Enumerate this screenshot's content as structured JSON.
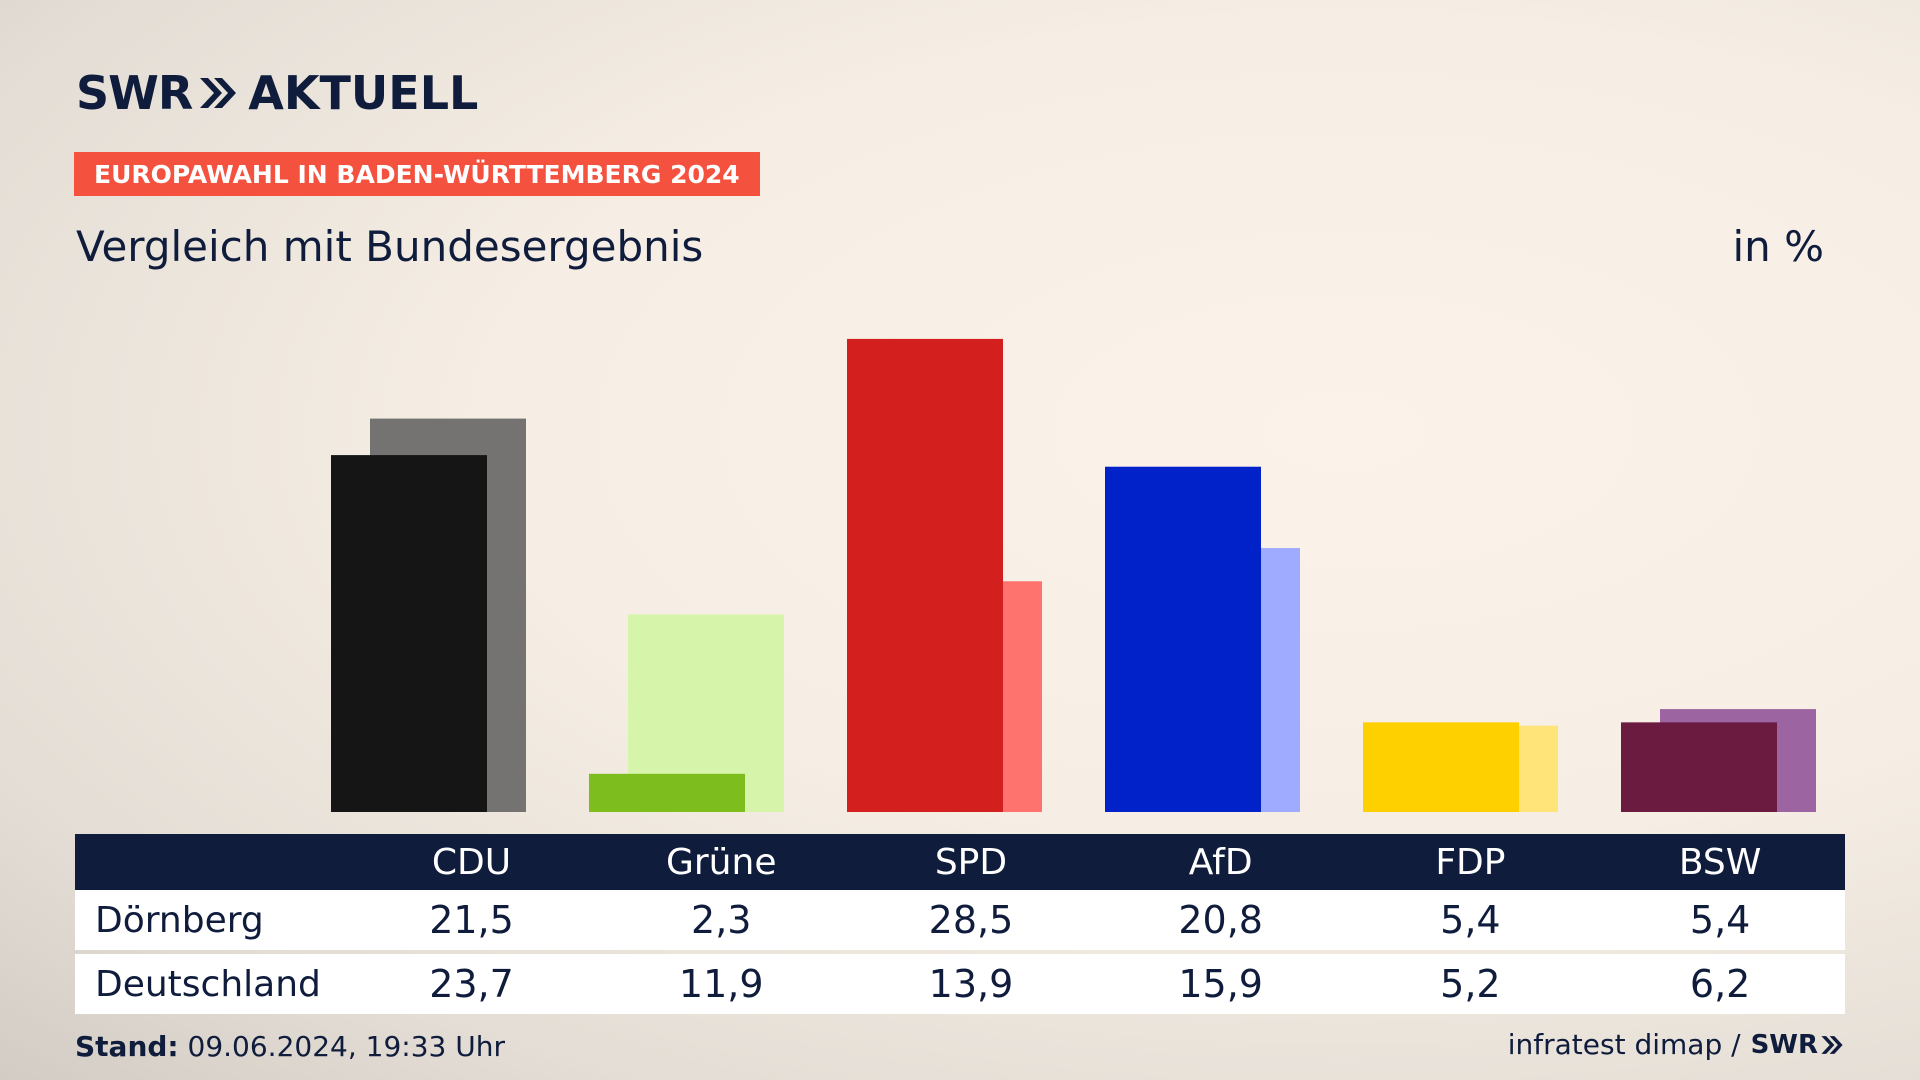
{
  "header": {
    "logo_left": "SWR",
    "logo_right": "AKTUELL",
    "banner": "EUROPAWAHL IN BADEN-WÜRTTEMBERG 2024",
    "subtitle": "Vergleich mit Bundesergebnis",
    "unit": "in %"
  },
  "chart_data": {
    "type": "bar",
    "categories": [
      "CDU",
      "Grüne",
      "SPD",
      "AfD",
      "FDP",
      "BSW"
    ],
    "series": [
      {
        "name": "Dörnberg",
        "values": [
          21.5,
          2.3,
          28.5,
          20.8,
          5.4,
          5.4
        ]
      },
      {
        "name": "Deutschland",
        "values": [
          23.7,
          11.9,
          13.9,
          15.9,
          5.2,
          6.2
        ]
      }
    ],
    "colors": {
      "primary": [
        "#151515",
        "#7dbd1e",
        "#d41f1f",
        "#0022c8",
        "#ffd000",
        "#6b1a40"
      ],
      "secondary": [
        "#747372",
        "#d7f5aa",
        "#ff736e",
        "#9fabff",
        "#ffe47a",
        "#9c64a0"
      ]
    },
    "ylim": [
      0,
      30
    ],
    "grid": false
  },
  "table": {
    "headers": [
      "CDU",
      "Grüne",
      "SPD",
      "AfD",
      "FDP",
      "BSW"
    ],
    "rows": [
      {
        "label": "Dörnberg",
        "values": [
          "21,5",
          "2,3",
          "28,5",
          "20,8",
          "5,4",
          "5,4"
        ]
      },
      {
        "label": "Deutschland",
        "values": [
          "23,7",
          "11,9",
          "13,9",
          "15,9",
          "5,2",
          "6,2"
        ]
      }
    ]
  },
  "footer": {
    "stand_label": "Stand:",
    "stand_value": " 09.06.2024, 19:33 Uhr",
    "source": "infratest dimap /",
    "source_logo": "SWR"
  }
}
